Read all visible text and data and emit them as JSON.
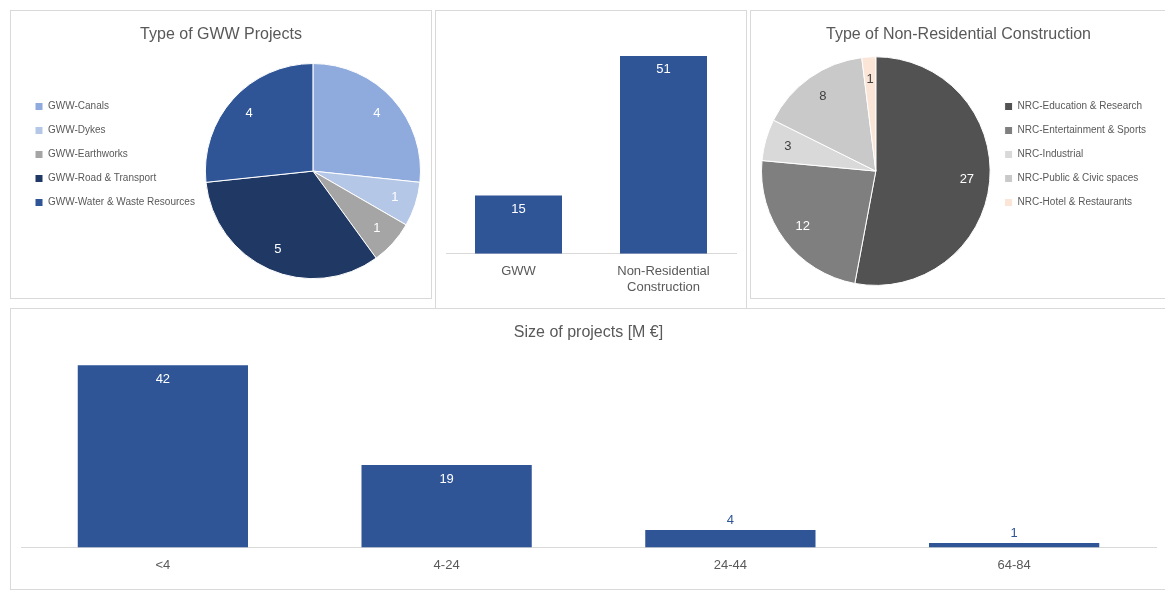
{
  "chart_data": [
    {
      "type": "pie",
      "title": "Type of GWW Projects",
      "categories": [
        "GWW-Canals",
        "GWW-Dykes",
        "GWW-Earthworks",
        "GWW-Road & Transport",
        "GWW-Water & Waste Resources"
      ],
      "values": [
        4,
        1,
        1,
        5,
        4
      ],
      "colors": [
        "#8faadc",
        "#b4c7e7",
        "#a5a5a5",
        "#203864",
        "#2f5597"
      ],
      "data_labels": true,
      "legend": "left"
    },
    {
      "type": "bar",
      "categories": [
        "GWW",
        "Non-Residential Construction"
      ],
      "values": [
        15,
        51
      ],
      "color": "#2f5597",
      "data_labels": true,
      "legend": false
    },
    {
      "type": "pie",
      "title": "Type of Non-Residential Construction",
      "categories": [
        "NRC-Education & Research",
        "NRC-Entertainment & Sports",
        "NRC-Industrial",
        "NRC-Public & Civic spaces",
        "NRC-Hotel & Restaurants"
      ],
      "values": [
        27,
        12,
        3,
        8,
        1
      ],
      "colors": [
        "#525252",
        "#7f7f7f",
        "#d9d9d9",
        "#c9c9c9",
        "#fbe5d6"
      ],
      "data_labels": true,
      "legend": "right"
    },
    {
      "type": "bar",
      "title": "Size of projects [M €]",
      "categories": [
        "<4",
        "4-24",
        "24-44",
        "64-84"
      ],
      "values": [
        42,
        19,
        4,
        1
      ],
      "color": "#2f5597",
      "data_labels": true,
      "legend": false
    }
  ]
}
